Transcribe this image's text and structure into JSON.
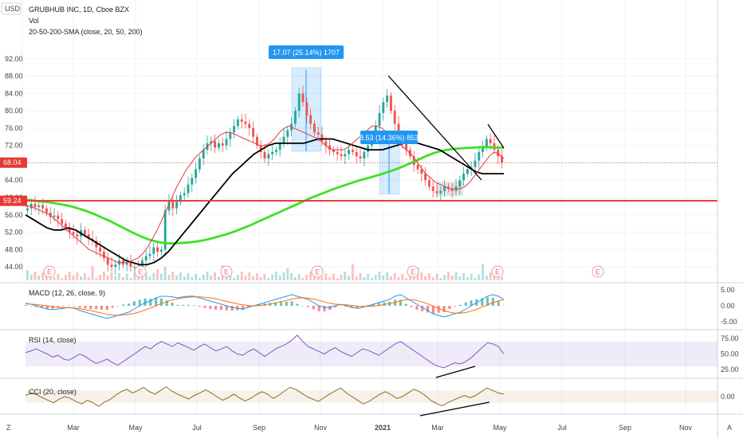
{
  "header": {
    "currency": "USD",
    "title": "GRUBHUB INC, 1D, Cboe BZX",
    "vol_label": "Vol",
    "sma_label": "20-50-200-SMA (close, 20, 50, 200)"
  },
  "axis_menu": {
    "left_label": "Z",
    "right_label": "A"
  },
  "chart_data": [
    {
      "type": "line",
      "name": "price",
      "x_ticks": [
        "Mar",
        "May",
        "Jul",
        "Sep",
        "Nov",
        "2021",
        "Mar",
        "May",
        "Jul",
        "Sep",
        "Nov"
      ],
      "y_ticks": [
        "44.00",
        "48.00",
        "52.00",
        "56.00",
        "60.00",
        "64.00",
        "68.00",
        "72.00",
        "76.00",
        "80.00",
        "84.00",
        "88.00",
        "92.00"
      ],
      "ylim": [
        42,
        96
      ],
      "price_badge": "68.04",
      "support_badge": "59.24",
      "support_level": 59.24,
      "annotations": [
        "17.07 (25.14%) 1707",
        "8.53 (14.36%) 853"
      ],
      "earnings_marker": "E",
      "close": [
        57.5,
        58.5,
        57.8,
        58.2,
        57.5,
        56.5,
        55.5,
        55.8,
        55.0,
        54.0,
        53.0,
        52.0,
        51.5,
        51.0,
        52.5,
        51.5,
        50.5,
        50.0,
        48.5,
        47.5,
        46.0,
        44.5,
        44.0,
        44.5,
        45.5,
        44.5,
        45.0,
        44.0,
        44.0,
        43.5,
        45.5,
        46.5,
        47.0,
        48.5,
        47.5,
        48.0,
        57.0,
        59.0,
        57.5,
        59.0,
        60.5,
        61.0,
        63.0,
        64.5,
        66.5,
        69.0,
        71.0,
        72.5,
        73.0,
        71.5,
        72.5,
        72.0,
        73.5,
        75.0,
        76.5,
        78.0,
        77.5,
        77.0,
        76.0,
        74.0,
        72.0,
        70.5,
        69.0,
        70.0,
        70.5,
        71.0,
        72.5,
        74.0,
        75.5,
        77.0,
        80.0,
        84.0,
        82.0,
        79.0,
        77.0,
        75.0,
        74.5,
        73.0,
        72.0,
        71.0,
        70.5,
        70.0,
        69.5,
        70.0,
        71.0,
        70.5,
        69.5,
        69.0,
        70.5,
        72.0,
        74.0,
        76.5,
        79.5,
        82.0,
        83.5,
        80.0,
        77.0,
        74.5,
        73.0,
        71.0,
        69.5,
        67.5,
        66.5,
        65.5,
        64.0,
        62.5,
        61.5,
        61.0,
        61.5,
        62.5,
        62.0,
        61.5,
        62.5,
        64.0,
        65.5,
        66.5,
        67.0,
        68.5,
        70.5,
        71.5,
        73.5,
        72.5,
        71.0,
        69.5,
        68.04
      ],
      "sma20": [
        58.0,
        58.0,
        57.5,
        57.0,
        56.5,
        56.0,
        55.0,
        54.0,
        53.0,
        52.0,
        51.0,
        50.0,
        49.0,
        48.0,
        47.5,
        47.0,
        46.5,
        46.0,
        45.5,
        45.0,
        45.0,
        45.0,
        45.5,
        46.0,
        47.0,
        48.5,
        50.5,
        52.5,
        55.0,
        57.5,
        60.0,
        62.5,
        64.5,
        66.5,
        68.0,
        69.5,
        70.5,
        71.5,
        72.5,
        73.5,
        74.5,
        75.0,
        75.0,
        74.5,
        74.0,
        73.5,
        73.0,
        72.5,
        72.0,
        72.0,
        72.5,
        73.5,
        75.0,
        76.0,
        76.5,
        76.0,
        75.5,
        75.0,
        74.5,
        74.0,
        73.5,
        72.5,
        71.5,
        71.0,
        71.0,
        71.0,
        71.5,
        72.5,
        73.5,
        74.5,
        75.5,
        76.5,
        76.5,
        76.0,
        75.0,
        74.0,
        73.0,
        72.0,
        71.0,
        70.0,
        68.5,
        67.0,
        65.5,
        64.5,
        63.5,
        63.0,
        62.5,
        62.0,
        62.0,
        62.0,
        62.5,
        63.5,
        65.0,
        66.5,
        68.0,
        69.5,
        70.5,
        70.0,
        69.0
      ],
      "sma50": [
        56.0,
        55.0,
        54.0,
        53.0,
        52.5,
        52.5,
        53.0,
        52.5,
        51.5,
        50.5,
        49.5,
        48.5,
        47.5,
        46.5,
        45.5,
        45.0,
        44.5,
        44.5,
        45.0,
        46.0,
        47.5,
        49.5,
        51.5,
        53.5,
        55.5,
        57.5,
        59.5,
        61.5,
        63.5,
        65.5,
        67.0,
        68.5,
        70.0,
        71.0,
        72.0,
        72.5,
        72.5,
        72.5,
        72.5,
        72.5,
        73.0,
        73.5,
        73.5,
        73.5,
        73.0,
        72.5,
        72.0,
        71.5,
        71.0,
        71.0,
        71.0,
        71.5,
        72.0,
        72.5,
        72.5,
        72.5,
        72.0,
        71.5,
        71.0,
        70.0,
        69.0,
        68.0,
        67.0,
        66.0,
        65.5,
        65.5,
        65.5,
        65.5
      ],
      "sma200": [
        59.5,
        59.3,
        59.1,
        58.9,
        58.6,
        58.3,
        57.9,
        57.4,
        56.8,
        56.1,
        55.3,
        54.5,
        53.6,
        52.7,
        51.8,
        51.0,
        50.3,
        49.8,
        49.5,
        49.4,
        49.5,
        49.6,
        49.8,
        50.1,
        50.5,
        51.0,
        51.5,
        52.1,
        52.8,
        53.5,
        54.3,
        55.1,
        55.9,
        56.7,
        57.5,
        58.3,
        59.1,
        59.9,
        60.6,
        61.3,
        62.0,
        62.6,
        63.2,
        63.8,
        64.3,
        64.8,
        65.3,
        65.9,
        66.5,
        67.2,
        68.0,
        68.8,
        69.6,
        70.3,
        70.8,
        71.1,
        71.3,
        71.4,
        71.5,
        71.6,
        71.6,
        71.5,
        71.5
      ]
    },
    {
      "type": "line",
      "name": "macd",
      "title": "MACD (12, 26, close, 9)",
      "y_ticks": [
        "5.00",
        "0.00",
        "-5.00"
      ],
      "ylim": [
        -6.5,
        6.5
      ],
      "macd": [
        0.8,
        0.5,
        0.0,
        -0.5,
        -1.0,
        -1.2,
        -1.0,
        -0.8,
        -0.5,
        -0.8,
        -1.5,
        -2.0,
        -2.5,
        -3.0,
        -3.5,
        -4.0,
        -3.5,
        -3.0,
        -2.5,
        -2.0,
        -1.0,
        0.0,
        1.0,
        1.5,
        2.5,
        3.0,
        3.0,
        2.8,
        2.5,
        2.8,
        3.0,
        3.0,
        2.5,
        2.0,
        1.5,
        1.0,
        0.5,
        0.0,
        -0.5,
        -0.8,
        -1.0,
        -0.5,
        0.0,
        0.5,
        1.0,
        1.5,
        2.0,
        2.5,
        3.0,
        3.5,
        3.0,
        2.5,
        2.0,
        1.0,
        0.0,
        -0.5,
        -0.5,
        0.0,
        0.5,
        0.0,
        -0.5,
        -0.8,
        -0.5,
        0.0,
        0.5,
        1.0,
        1.5,
        2.0,
        3.0,
        3.5,
        2.5,
        1.5,
        0.5,
        -0.5,
        -1.5,
        -2.5,
        -3.0,
        -3.5,
        -3.0,
        -2.5,
        -2.0,
        -1.0,
        0.0,
        1.0,
        2.0,
        3.0,
        3.5,
        3.0,
        2.0
      ],
      "signal": [
        0.6,
        0.5,
        0.4,
        0.2,
        0.0,
        -0.3,
        -0.5,
        -0.6,
        -0.6,
        -0.7,
        -0.9,
        -1.2,
        -1.5,
        -1.9,
        -2.3,
        -2.7,
        -2.9,
        -3.0,
        -2.9,
        -2.7,
        -2.4,
        -1.9,
        -1.3,
        -0.7,
        0.0,
        0.7,
        1.3,
        1.8,
        2.2,
        2.5,
        2.7,
        2.8,
        2.8,
        2.7,
        2.5,
        2.2,
        1.8,
        1.4,
        1.0,
        0.6,
        0.3,
        0.1,
        0.0,
        0.1,
        0.3,
        0.6,
        0.9,
        1.3,
        1.7,
        2.1,
        2.4,
        2.5,
        2.4,
        2.1,
        1.7,
        1.2,
        0.8,
        0.5,
        0.4,
        0.3,
        0.1,
        -0.1,
        -0.2,
        -0.2,
        -0.1,
        0.1,
        0.4,
        0.7,
        1.1,
        1.6,
        1.9,
        1.9,
        1.7,
        1.2,
        0.6,
        -0.1,
        -0.8,
        -1.5,
        -2.0,
        -2.3,
        -2.3,
        -2.1,
        -1.7,
        -1.1,
        -0.4,
        0.3,
        1.0,
        1.6,
        1.9
      ]
    },
    {
      "type": "line",
      "name": "rsi",
      "title": "RSI (14, close)",
      "y_ticks": [
        "75.00",
        "50.00",
        "25.00"
      ],
      "ylim": [
        15,
        85
      ],
      "band": [
        30,
        70
      ],
      "values": [
        52,
        55,
        58,
        54,
        50,
        45,
        48,
        42,
        40,
        45,
        50,
        46,
        40,
        35,
        38,
        42,
        36,
        32,
        38,
        44,
        50,
        56,
        62,
        58,
        65,
        70,
        66,
        62,
        68,
        64,
        60,
        56,
        62,
        66,
        60,
        55,
        58,
        62,
        55,
        50,
        48,
        54,
        58,
        52,
        46,
        52,
        58,
        62,
        66,
        72,
        80,
        70,
        62,
        58,
        54,
        50,
        56,
        60,
        54,
        50,
        46,
        52,
        58,
        56,
        52,
        48,
        54,
        60,
        66,
        70,
        64,
        58,
        52,
        46,
        40,
        34,
        30,
        28,
        32,
        36,
        34,
        38,
        44,
        52,
        60,
        68,
        66,
        62,
        50
      ]
    },
    {
      "type": "line",
      "name": "cci",
      "title": "CCI (20, close)",
      "y_ticks": [
        "0.00"
      ],
      "ylim": [
        -260,
        260
      ],
      "band": [
        -100,
        100
      ],
      "values": [
        20,
        60,
        30,
        -20,
        -60,
        -100,
        -40,
        0,
        -30,
        -80,
        -120,
        -60,
        -100,
        -160,
        -90,
        -50,
        20,
        80,
        120,
        60,
        100,
        150,
        80,
        40,
        100,
        160,
        90,
        40,
        0,
        -40,
        20,
        60,
        110,
        60,
        0,
        -60,
        -20,
        40,
        -20,
        -70,
        -30,
        30,
        80,
        40,
        -30,
        20,
        90,
        150,
        120,
        60,
        0,
        -40,
        -80,
        -20,
        40,
        90,
        140,
        60,
        0,
        -60,
        -120,
        -80,
        -20,
        40,
        80,
        30,
        -30,
        0,
        60,
        120,
        80,
        20,
        -60,
        -110,
        -150,
        -100,
        -60,
        -20,
        20,
        -20,
        20,
        80,
        140,
        100,
        60,
        40
      ]
    }
  ]
}
